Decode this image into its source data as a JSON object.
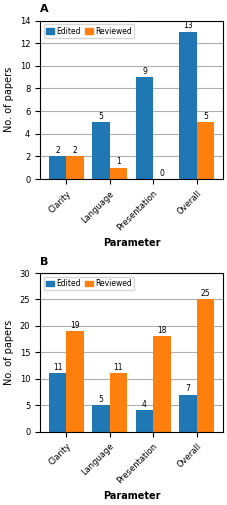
{
  "chart_data": [
    {
      "type": "bar",
      "title": "A",
      "categories": [
        "Clarity",
        "Language",
        "Presentation",
        "Overall"
      ],
      "series": [
        {
          "name": "Edited",
          "values": [
            2,
            5,
            9,
            13
          ]
        },
        {
          "name": "Reviewed",
          "values": [
            2,
            1,
            0,
            5
          ]
        }
      ],
      "ylim": [
        0,
        14
      ],
      "yticks": [
        0,
        2,
        4,
        6,
        8,
        10,
        12,
        14
      ],
      "ylabel": "No. of papers",
      "xlabel": "Parameter",
      "grid": true,
      "legend": "upper left",
      "data_labels": true
    },
    {
      "type": "bar",
      "title": "B",
      "categories": [
        "Clarity",
        "Language",
        "Presentation",
        "Overall"
      ],
      "series": [
        {
          "name": "Edited",
          "values": [
            11,
            5,
            4,
            7
          ]
        },
        {
          "name": "Reviewed",
          "values": [
            19,
            11,
            18,
            25
          ]
        }
      ],
      "ylim": [
        0,
        30
      ],
      "yticks": [
        0,
        5,
        10,
        15,
        20,
        25,
        30
      ],
      "ylabel": "No. of papers",
      "xlabel": "Parameter",
      "grid": true,
      "legend": "upper left",
      "data_labels": true
    }
  ]
}
